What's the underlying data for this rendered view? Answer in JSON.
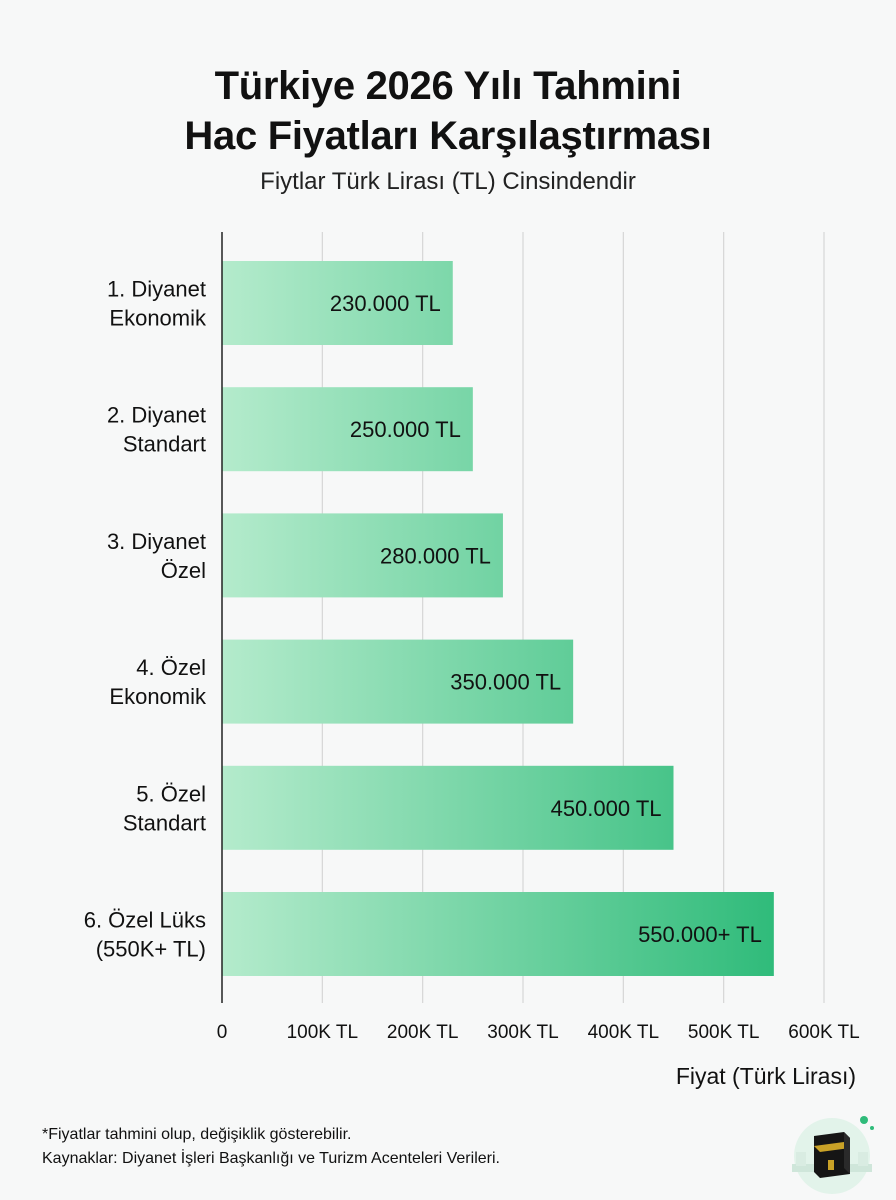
{
  "header": {
    "title_line1": "Türkiye 2026 Yılı Tahmini",
    "title_line2": "Hac Fiyatları Karşılaştırması",
    "subtitle": "Fiytlar Türk Lirası (TL) Cinsindendir"
  },
  "chart_data": {
    "type": "bar",
    "orientation": "horizontal",
    "categories": [
      [
        "1. Diyanet",
        "Ekonomik"
      ],
      [
        "2. Diyanet",
        "Standart"
      ],
      [
        "3. Diyanet",
        "Özel"
      ],
      [
        "4. Özel",
        "Ekonomik"
      ],
      [
        "5. Özel",
        "Standart"
      ],
      [
        "6. Özel Lüks",
        "(550K+ TL)"
      ]
    ],
    "values": [
      230000,
      250000,
      280000,
      350000,
      450000,
      550000
    ],
    "data_labels": [
      "230.000 TL",
      "250.000 TL",
      "280.000 TL",
      "350.000 TL",
      "450.000 TL",
      "550.000+ TL"
    ],
    "xlabel": "Fiyat (Türk Lirası)",
    "xlim": [
      0,
      600000
    ],
    "x_ticks": [
      0,
      100000,
      200000,
      300000,
      400000,
      500000,
      600000
    ],
    "x_tick_labels": [
      "0",
      "100K TL",
      "200K TL",
      "300K TL",
      "400K TL",
      "500K TL",
      "600K TL"
    ],
    "grid": true,
    "colors": {
      "bar_light": "#b4ebcc",
      "bar_dark": "#2fbb7a",
      "grid": "#d6d6d6",
      "axis": "#222222"
    }
  },
  "footer": {
    "note": "*Fiyatlar tahmini olup, değişiklik gösterebilir.",
    "sources": "Kaynaklar: Diyanet İşleri Başkanlığı ve Turizm Acenteleri Verileri."
  },
  "logo": {
    "icon": "kaaba-icon"
  }
}
